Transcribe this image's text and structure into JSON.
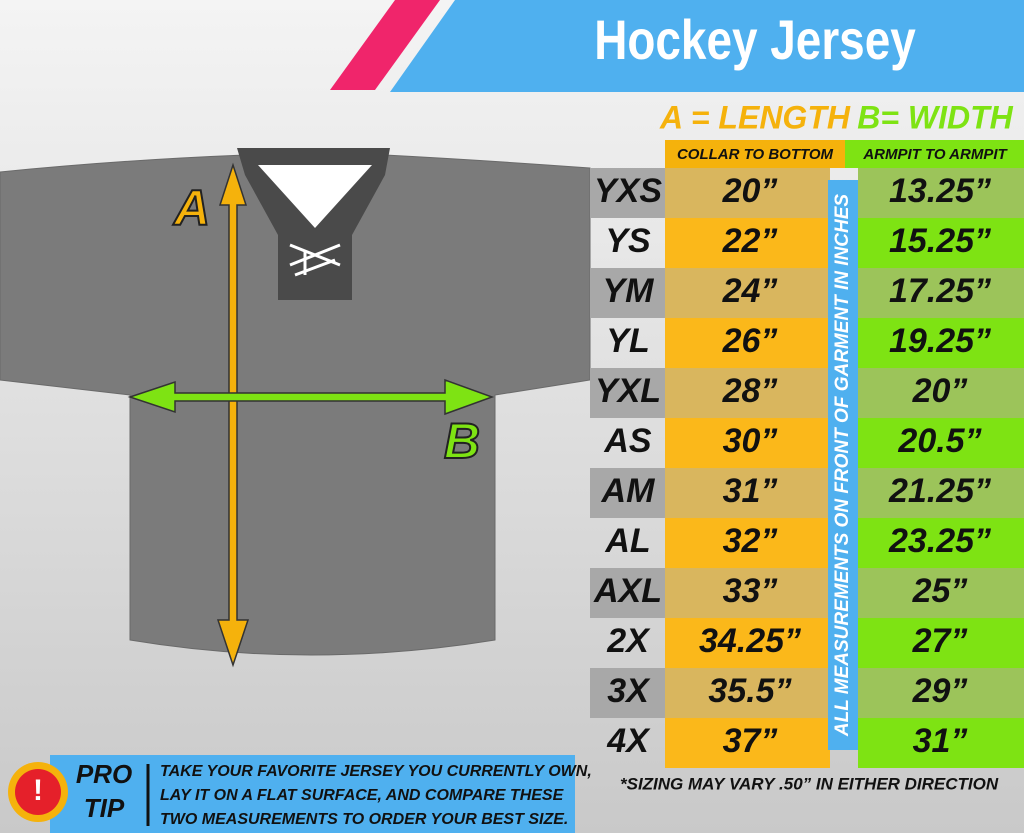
{
  "header": {
    "title": "Hockey Jersey"
  },
  "diagram": {
    "label_a": "A",
    "label_b": "B"
  },
  "table": {
    "columns": [
      {
        "title": "A = LENGTH",
        "subtitle": "COLLAR TO BOTTOM"
      },
      {
        "title": "B= WIDTH",
        "subtitle": "ARMPIT TO ARMPIT"
      }
    ],
    "side_note": "ALL MEASUREMENTS ON FRONT OF GARMENT IN INCHES",
    "rows": [
      [
        "YXS",
        "20”",
        "13.25”"
      ],
      [
        "YS",
        "22”",
        "15.25”"
      ],
      [
        "YM",
        "24”",
        "17.25”"
      ],
      [
        "YL",
        "26”",
        "19.25”"
      ],
      [
        "YXL",
        "28”",
        "20”"
      ],
      [
        "AS",
        "30”",
        "20.5”"
      ],
      [
        "AM",
        "31”",
        "21.25”"
      ],
      [
        "AL",
        "32”",
        "23.25”"
      ],
      [
        "AXL",
        "33”",
        "25”"
      ],
      [
        "2X",
        "34.25”",
        "27”"
      ],
      [
        "3X",
        "35.5”",
        "29”"
      ],
      [
        "4X",
        "37”",
        "31”"
      ]
    ]
  },
  "footnote": "*SIZING MAY VARY .50” IN EITHER DIRECTION",
  "tip": {
    "icon": "!",
    "label": [
      "PRO",
      "TIP"
    ],
    "lines": [
      "TAKE YOUR FAVORITE JERSEY YOU CURRENTLY OWN,",
      "LAY IT ON A FLAT SURFACE, AND COMPARE THESE",
      "TWO MEASUREMENTS TO ORDER YOUR BEST SIZE."
    ]
  }
}
